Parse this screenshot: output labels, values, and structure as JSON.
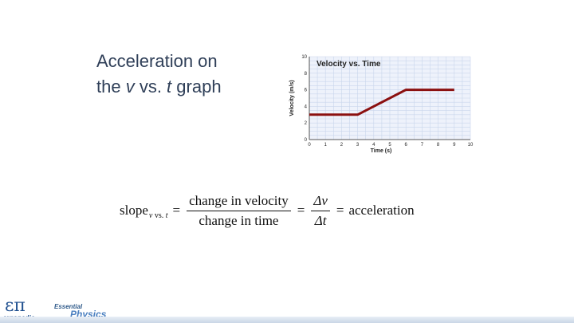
{
  "slide": {
    "title_line1": "Acceleration on",
    "title_line2_start": "the ",
    "title_line2_var": "v",
    "title_line2_mid": " vs. ",
    "title_line2_var2": "t",
    "title_line2_end": " graph"
  },
  "equation": {
    "lhs": "slope",
    "lhs_sub_v": "v",
    "lhs_sub_mid": " vs. ",
    "lhs_sub_t": "t",
    "equals": "=",
    "frac1_num": "change in velocity",
    "frac1_den": "change in time",
    "frac2_num": "Δv",
    "frac2_den": "Δt",
    "rhs": "acceleration"
  },
  "chart_data": {
    "type": "line",
    "title": "Velocity vs. Time",
    "xlabel": "Time (s)",
    "ylabel": "Velocity (m/s)",
    "xlim": [
      0,
      10
    ],
    "ylim": [
      0,
      10
    ],
    "xticks": [
      0,
      1,
      2,
      3,
      4,
      5,
      6,
      7,
      8,
      9,
      10
    ],
    "yticks": [
      0,
      2,
      4,
      6,
      8,
      10
    ],
    "grid": true,
    "series": [
      {
        "x": [
          0,
          3,
          6,
          9
        ],
        "y": [
          3,
          3,
          6,
          6
        ]
      }
    ],
    "colors": {
      "line": "#8b1010",
      "grid": "#c9d6ec",
      "plot_bg": "#eef2fb"
    }
  },
  "branding": {
    "logo_symbol": "επ",
    "logo_text": "ergopedia",
    "brand_top": "Essential",
    "brand_main": "Physics"
  }
}
